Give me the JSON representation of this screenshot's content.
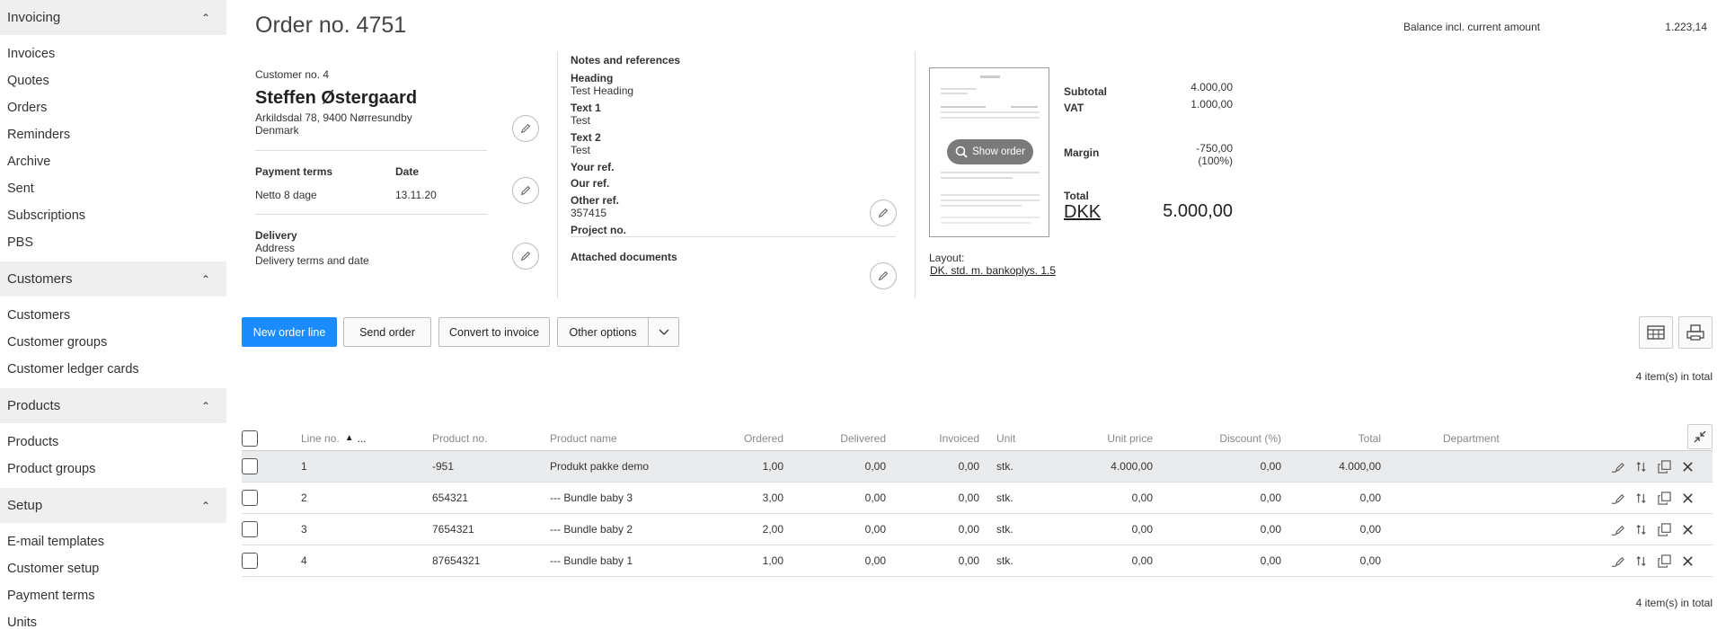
{
  "sidebar": {
    "sections": [
      {
        "title": "Invoicing",
        "items": [
          "Invoices",
          "Quotes",
          "Orders",
          "Reminders",
          "Archive",
          "Sent",
          "Subscriptions",
          "PBS"
        ]
      },
      {
        "title": "Customers",
        "items": [
          "Customers",
          "Customer groups",
          "Customer ledger cards"
        ]
      },
      {
        "title": "Products",
        "items": [
          "Products",
          "Product groups"
        ]
      },
      {
        "title": "Setup",
        "items": [
          "E-mail templates",
          "Customer setup",
          "Payment terms",
          "Units"
        ]
      }
    ]
  },
  "header": {
    "title": "Order no. 4751",
    "balance_label": "Balance incl. current amount",
    "balance_value": "1.223,14"
  },
  "customer": {
    "number": "Customer no. 4",
    "name": "Steffen Østergaard",
    "address": "Arkildsdal 78, 9400 Nørresundby",
    "country": "Denmark",
    "payment_terms_label": "Payment terms",
    "payment_terms_value": "Netto 8 dage",
    "date_label": "Date",
    "date_value": "13.11.20",
    "delivery_label": "Delivery",
    "delivery_address": "Address",
    "delivery_terms": "Delivery terms and date"
  },
  "notes": {
    "title": "Notes and references",
    "heading_label": "Heading",
    "heading_value": "Test Heading",
    "text1_label": "Text 1",
    "text1_value": "Test",
    "text2_label": "Text 2",
    "text2_value": "Test",
    "your_ref_label": "Your ref.",
    "our_ref_label": "Our ref.",
    "other_ref_label": "Other ref.",
    "other_ref_value": "357415",
    "project_label": "Project no.",
    "attached_label": "Attached documents"
  },
  "summary": {
    "show_order": "Show order",
    "subtotal_label": "Subtotal",
    "subtotal_value": "4.000,00",
    "vat_label": "VAT",
    "vat_value": "1.000,00",
    "margin_label": "Margin",
    "margin_value": "-750,00",
    "margin_pct": "(100%)",
    "total_label": "Total",
    "currency": "DKK",
    "total_value": "5.000,00",
    "layout_label": "Layout:",
    "layout_value": "DK. std. m. bankoplys. 1.5"
  },
  "toolbar": {
    "new_order_line": "New order line",
    "send_order": "Send order",
    "convert_to_invoice": "Convert to invoice",
    "other_options": "Other options",
    "items_total": "4 item(s) in total"
  },
  "table": {
    "headers": {
      "line_no": "Line no.",
      "sort_more": "...",
      "product_no": "Product no.",
      "product_name": "Product name",
      "ordered": "Ordered",
      "delivered": "Delivered",
      "invoiced": "Invoiced",
      "unit": "Unit",
      "unit_price": "Unit price",
      "discount": "Discount (%)",
      "total": "Total",
      "department": "Department"
    },
    "rows": [
      {
        "line": "1",
        "product_no": "-951",
        "product_name": "Produkt pakke demo",
        "ordered": "1,00",
        "delivered": "0,00",
        "invoiced": "0,00",
        "unit": "stk.",
        "unit_price": "4.000,00",
        "discount": "0,00",
        "total": "4.000,00"
      },
      {
        "line": "2",
        "product_no": "654321",
        "product_name": "--- Bundle baby 3",
        "ordered": "3,00",
        "delivered": "0,00",
        "invoiced": "0,00",
        "unit": "stk.",
        "unit_price": "0,00",
        "discount": "0,00",
        "total": "0,00"
      },
      {
        "line": "3",
        "product_no": "7654321",
        "product_name": "--- Bundle baby 2",
        "ordered": "2,00",
        "delivered": "0,00",
        "invoiced": "0,00",
        "unit": "stk.",
        "unit_price": "0,00",
        "discount": "0,00",
        "total": "0,00"
      },
      {
        "line": "4",
        "product_no": "87654321",
        "product_name": "--- Bundle baby 1",
        "ordered": "1,00",
        "delivered": "0,00",
        "invoiced": "0,00",
        "unit": "stk.",
        "unit_price": "0,00",
        "discount": "0,00",
        "total": "0,00"
      }
    ]
  },
  "colors": {
    "primary_button": "#1a8cff",
    "sidebar_bg": "#efefef",
    "row_highlight": "#e9ebed"
  }
}
